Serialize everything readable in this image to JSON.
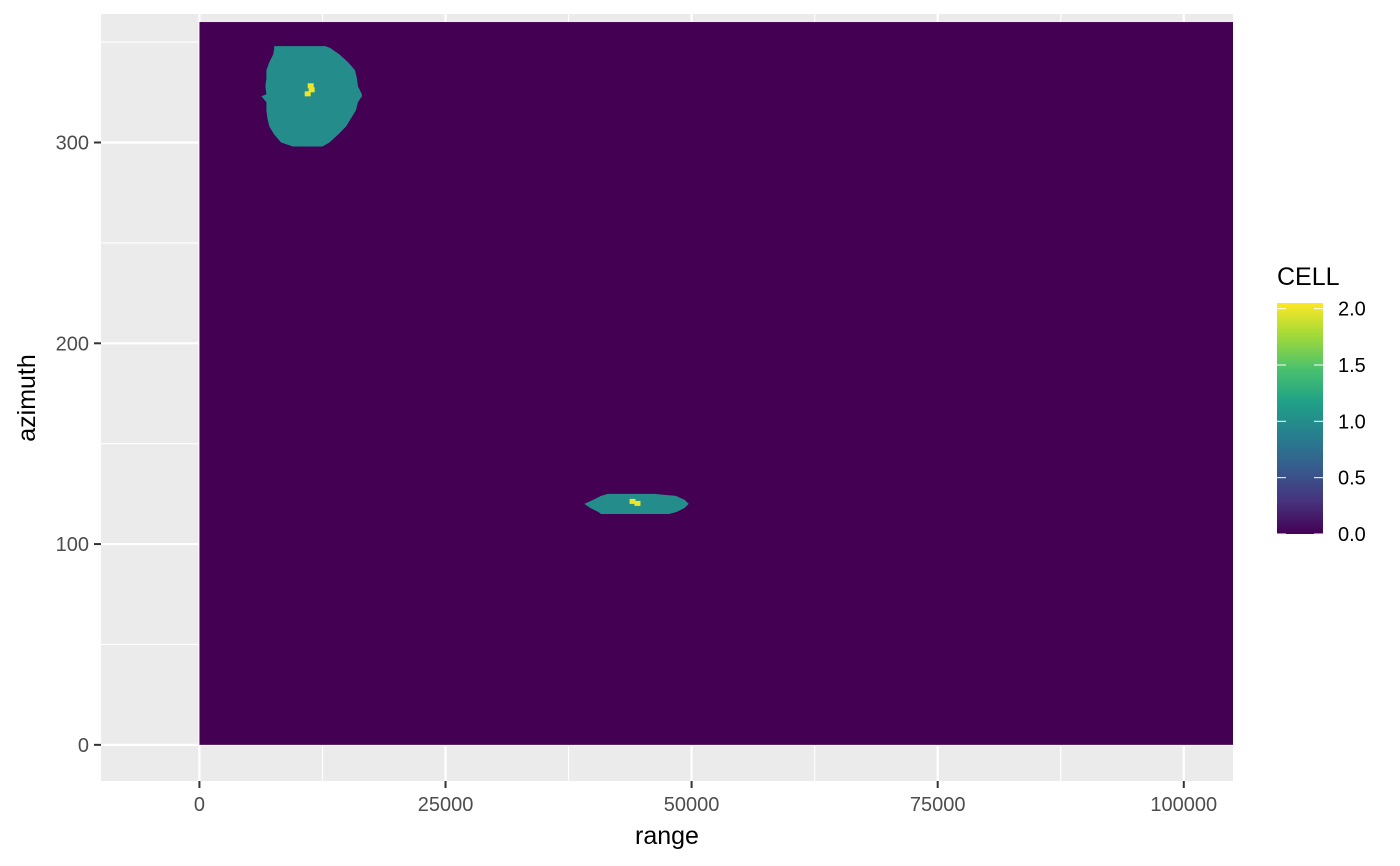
{
  "chart_data": {
    "type": "heatmap",
    "xlabel": "range",
    "ylabel": "azimuth",
    "xlim": [
      -10000,
      105000
    ],
    "ylim": [
      -18,
      364
    ],
    "x_ticks": [
      0,
      25000,
      50000,
      75000,
      100000
    ],
    "x_tick_labels": [
      "0",
      "25000",
      "50000",
      "75000",
      "100000"
    ],
    "y_ticks": [
      0,
      100,
      200,
      300
    ],
    "y_tick_labels": [
      "0",
      "100",
      "200",
      "300"
    ],
    "grid": true,
    "data_extent": {
      "x": [
        0,
        105000
      ],
      "y": [
        0,
        360
      ]
    },
    "background_value": 0,
    "regions": [
      {
        "value": 1,
        "profile": [
          [
            298,
            9500,
            12500
          ],
          [
            300,
            8300,
            13200
          ],
          [
            304,
            7600,
            14100
          ],
          [
            308,
            7100,
            14900
          ],
          [
            312,
            6900,
            15400
          ],
          [
            316,
            6800,
            15900
          ],
          [
            320,
            6800,
            16100
          ],
          [
            323,
            6300,
            16500
          ],
          [
            324,
            6800,
            16500
          ],
          [
            328,
            6700,
            16100
          ],
          [
            332,
            6800,
            16000
          ],
          [
            336,
            6800,
            15800
          ],
          [
            340,
            7100,
            15100
          ],
          [
            344,
            7500,
            14200
          ],
          [
            347,
            7600,
            13300
          ],
          [
            348,
            7600,
            12800
          ]
        ]
      },
      {
        "value": 1,
        "profile": [
          [
            115,
            40800,
            47700
          ],
          [
            116,
            40500,
            48500
          ],
          [
            118,
            39700,
            49300
          ],
          [
            120,
            39100,
            49700
          ],
          [
            122,
            40000,
            49300
          ],
          [
            124,
            40800,
            48400
          ],
          [
            125,
            41500,
            46200
          ]
        ]
      }
    ],
    "points": [
      {
        "x": 11300,
        "y": 328,
        "value": 2
      },
      {
        "x": 11400,
        "y": 326,
        "value": 2
      },
      {
        "x": 11000,
        "y": 324,
        "value": 2
      },
      {
        "x": 44000,
        "y": 121,
        "value": 2
      },
      {
        "x": 44500,
        "y": 120,
        "value": 2
      }
    ],
    "legend": {
      "title": "CELL",
      "placement": "right",
      "range": [
        0,
        2.05
      ],
      "ticks": [
        0.0,
        0.5,
        1.0,
        1.5,
        2.0
      ],
      "tick_labels": [
        "0.0",
        "0.5",
        "1.0",
        "1.5",
        "2.0"
      ],
      "colormap": "viridis",
      "colors": [
        "#440154",
        "#46337e",
        "#365c8d",
        "#277f8e",
        "#1fa187",
        "#4ac16d",
        "#a0da39",
        "#fde725"
      ]
    },
    "panel_background": "#ebebeb",
    "grid_color": "#ffffff"
  }
}
